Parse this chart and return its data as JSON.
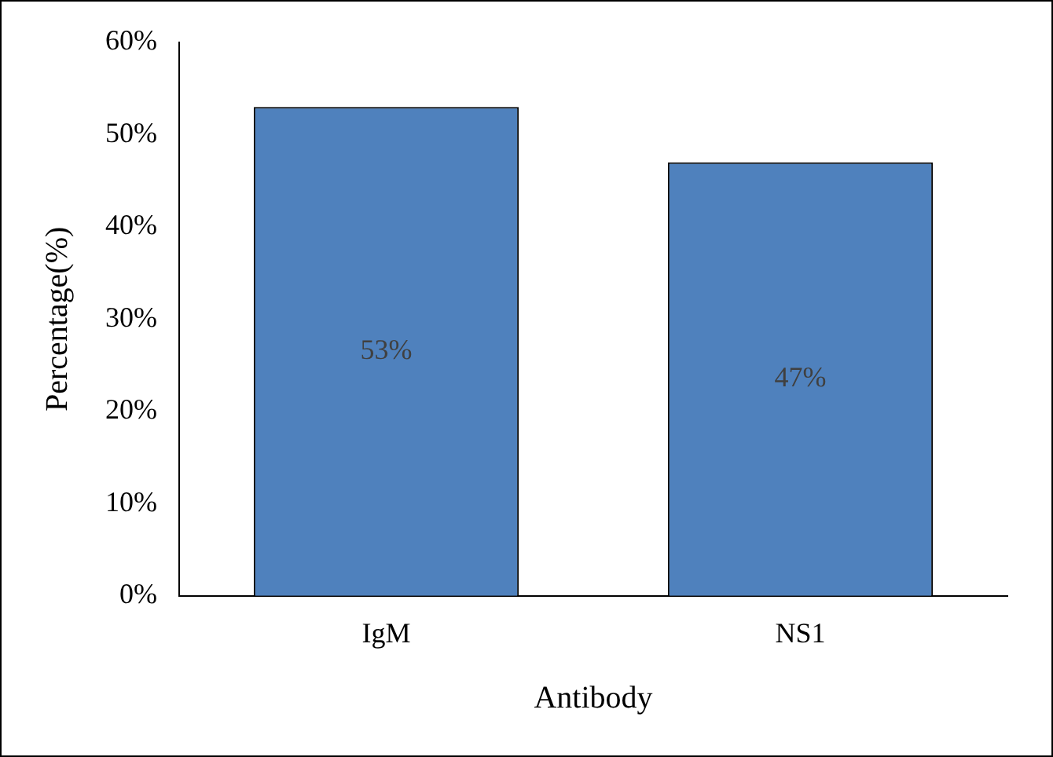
{
  "chart_data": {
    "type": "bar",
    "xlabel": "Antibody",
    "ylabel": "Percentage(%)",
    "categories": [
      "IgM",
      "NS1"
    ],
    "values": [
      53,
      47
    ],
    "color": "#4f81bd",
    "value_labels": [
      "53%",
      "47%"
    ],
    "ylim": [
      0,
      60
    ],
    "yticks": [
      {
        "value": 0,
        "label": "0%"
      },
      {
        "value": 10,
        "label": "10%"
      },
      {
        "value": 20,
        "label": "20%"
      },
      {
        "value": 30,
        "label": "30%"
      },
      {
        "value": 40,
        "label": "40%"
      },
      {
        "value": 50,
        "label": "50%"
      },
      {
        "value": 60,
        "label": "60%"
      }
    ],
    "grid": false,
    "legend": false
  }
}
